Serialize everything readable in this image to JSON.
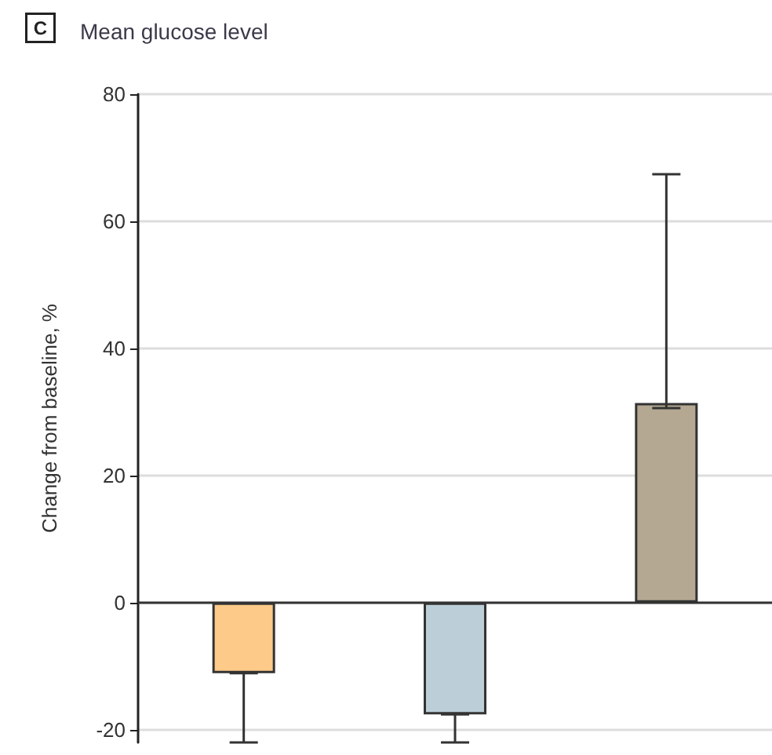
{
  "chart_data": {
    "type": "bar",
    "title": "Mean glucose level",
    "ylabel": "Change from baseline, %",
    "annotations": [
      "C"
    ],
    "categories": [
      null,
      null,
      null
    ],
    "values": [
      -11.1,
      -17.6,
      31.4
    ],
    "colors": [
      "#fdca89",
      "#bccfd8",
      "#b5a893"
    ],
    "errors": [
      [
        -22,
        -11.1
      ],
      [
        -22,
        -17.6
      ],
      [
        30.6,
        67.4
      ]
    ],
    "ylim": [
      -22,
      80
    ],
    "yticks": [
      -20,
      0,
      20,
      40,
      60,
      80
    ],
    "grid": "y"
  }
}
